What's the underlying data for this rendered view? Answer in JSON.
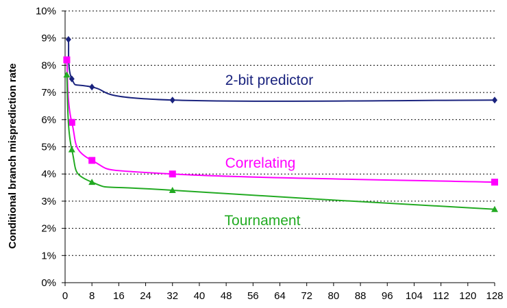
{
  "chart_data": {
    "type": "line",
    "title": "",
    "xlabel": "",
    "ylabel": "Conditional branch misprediction rate",
    "xlim": [
      0,
      128
    ],
    "ylim": [
      0,
      10
    ],
    "x_ticks": [
      0,
      8,
      16,
      24,
      32,
      40,
      48,
      56,
      64,
      72,
      80,
      88,
      96,
      104,
      112,
      120,
      128
    ],
    "y_ticks": [
      0,
      1,
      2,
      3,
      4,
      5,
      6,
      7,
      8,
      9,
      10
    ],
    "x_tick_labels": [
      "0",
      "8",
      "16",
      "24",
      "32",
      "40",
      "48",
      "56",
      "64",
      "72",
      "80",
      "88",
      "96",
      "104",
      "112",
      "120",
      "128"
    ],
    "y_tick_labels": [
      "0%",
      "1%",
      "2%",
      "3%",
      "4%",
      "5%",
      "6%",
      "7%",
      "8%",
      "9%",
      "10%"
    ],
    "grid": "horizontal dotted",
    "series": [
      {
        "name": "2-bit predictor",
        "color": "#1a237e",
        "marker": "diamond",
        "points": [
          [
            1,
            8.95
          ],
          [
            2,
            7.5
          ],
          [
            8,
            7.2
          ],
          [
            32,
            6.72
          ],
          [
            128,
            6.72
          ]
        ]
      },
      {
        "name": "Correlating",
        "color": "#ff00ff",
        "marker": "square",
        "points": [
          [
            0.5,
            8.2
          ],
          [
            2,
            5.9
          ],
          [
            8,
            4.5
          ],
          [
            32,
            4.0
          ],
          [
            128,
            3.7
          ]
        ]
      },
      {
        "name": "Tournament",
        "color": "#22aa22",
        "marker": "triangle",
        "points": [
          [
            0.5,
            7.65
          ],
          [
            2,
            4.9
          ],
          [
            8,
            3.7
          ],
          [
            32,
            3.4
          ],
          [
            128,
            2.7
          ]
        ]
      }
    ]
  }
}
